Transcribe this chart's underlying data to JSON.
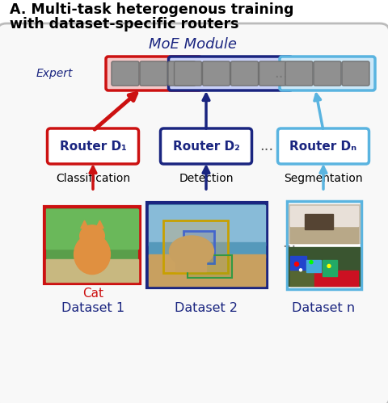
{
  "title_line1": "A. Multi-task heterogenous training",
  "title_line2": "with dataset-specific routers",
  "moe_label": "MoE Module",
  "expert_label": "Expert",
  "router_labels": [
    "Router D₁",
    "Router D₂",
    "Router Dₙ"
  ],
  "task_labels": [
    "Classification",
    "Detection",
    "Segmentation"
  ],
  "dataset_labels": [
    "Dataset 1",
    "Dataset 2",
    "Dataset n"
  ],
  "cat_label": "Cat",
  "colors": {
    "red": "#cc1111",
    "dark_blue": "#1a2580",
    "light_blue": "#5ab4e0",
    "gray_box": "#888888",
    "border_gray": "#bbbbbb",
    "expert_red_bg": "#f5c8c8",
    "expert_blue_bg": "#c8d0f8",
    "expert_light_bg": "#cce8f8",
    "title_color": "#111111"
  },
  "figsize": [
    4.8,
    4.99
  ],
  "dpi": 100
}
